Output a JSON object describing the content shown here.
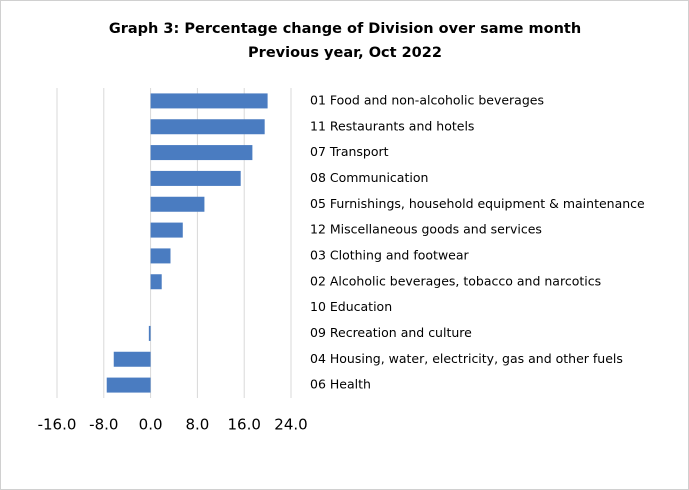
{
  "chart_data": {
    "type": "bar",
    "orientation": "horizontal",
    "title": [
      "Graph 3: Percentage change of Division over same month",
      "Previous year, Oct 2022"
    ],
    "categories": [
      "01 Food and non-alcoholic beverages",
      "11 Restaurants and hotels",
      "07 Transport",
      "08 Communication",
      "05 Furnishings, household equipment & maintenance",
      "12 Miscellaneous goods and services",
      "03 Clothing and footwear",
      "02 Alcoholic beverages, tobacco and narcotics",
      "10 Education",
      "09 Recreation and culture",
      "04 Housing, water, electricity, gas and other fuels",
      "06 Health"
    ],
    "values": [
      20.0,
      19.5,
      17.4,
      15.4,
      9.2,
      5.5,
      3.4,
      1.9,
      0,
      -0.3,
      -6.3,
      -7.5
    ],
    "color": "#4a7cc1",
    "xlim": [
      -16,
      24
    ],
    "xticks": [
      {
        "value": -16,
        "label": "-16.0"
      },
      {
        "value": -8,
        "label": "-8.0"
      },
      {
        "value": 0,
        "label": "0.0"
      },
      {
        "value": 8,
        "label": "8.0"
      },
      {
        "value": 16,
        "label": "16.0"
      },
      {
        "value": 24,
        "label": "24.0"
      }
    ],
    "grid": true
  }
}
